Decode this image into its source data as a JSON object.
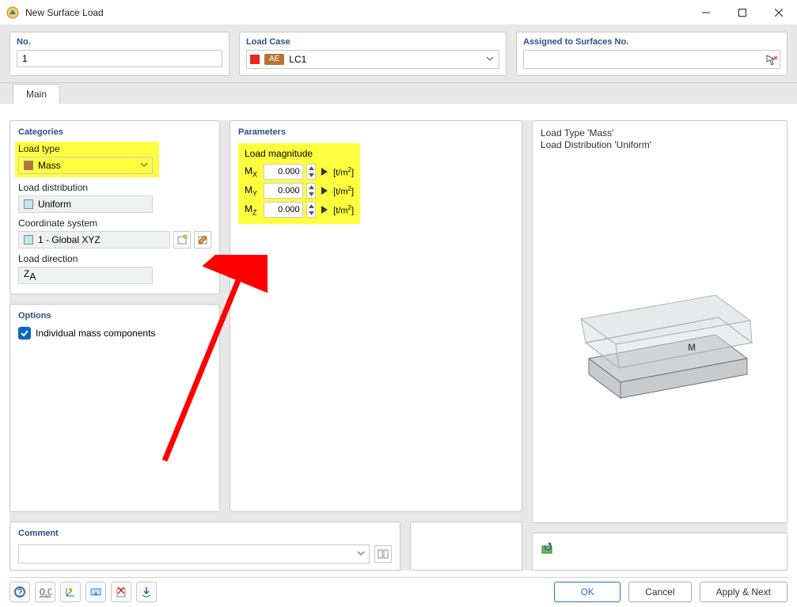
{
  "window": {
    "title": "New Surface Load"
  },
  "top": {
    "no_label": "No.",
    "no_value": "1",
    "lc_label": "Load Case",
    "lc_swatch_color": "#e8281e",
    "lc_pill": "AE",
    "lc_text": "LC1",
    "assigned_label": "Assigned to Surfaces No.",
    "assigned_value": ""
  },
  "tabs": {
    "main": "Main"
  },
  "categories": {
    "head": "Categories",
    "load_type_label": "Load type",
    "load_type_value": "Mass",
    "load_type_swatch": "#b87333",
    "dist_label": "Load distribution",
    "dist_value": "Uniform",
    "dist_swatch": "#bfe8ee",
    "coord_label": "Coordinate system",
    "coord_value": "1 - Global XYZ",
    "coord_swatch": "#bfe8ee",
    "dir_label": "Load direction",
    "dir_value": "Z",
    "dir_sub": "A"
  },
  "options": {
    "head": "Options",
    "individual_mass": "Individual mass components",
    "individual_mass_checked": true
  },
  "parameters": {
    "head": "Parameters",
    "mag_title": "Load magnitude",
    "rows": [
      {
        "sym": "M",
        "sub": "X",
        "value": "0.000",
        "unit_pre": "[t/m",
        "unit_sup": "2",
        "unit_post": "]"
      },
      {
        "sym": "M",
        "sub": "Y",
        "value": "0.000",
        "unit_pre": "[t/m",
        "unit_sup": "2",
        "unit_post": "]"
      },
      {
        "sym": "M",
        "sub": "Z",
        "value": "0.000",
        "unit_pre": "[t/m",
        "unit_sup": "2",
        "unit_post": "]"
      }
    ]
  },
  "preview": {
    "line1": "Load Type 'Mass'",
    "line2": "Load Distribution 'Uniform'",
    "markM": "M",
    "colors": {
      "top_fill": "#d5d7da",
      "mid_fill": "#cccfd3",
      "bot_fill": "#c2c5c9",
      "edge": "#6d7075",
      "light_edge": "#b0b3b7"
    }
  },
  "comment": {
    "head": "Comment",
    "value": ""
  },
  "buttons": {
    "ok": "OK",
    "cancel": "Cancel",
    "apply": "Apply & Next"
  },
  "annotation": {
    "arrow_color": "#ff0000"
  }
}
